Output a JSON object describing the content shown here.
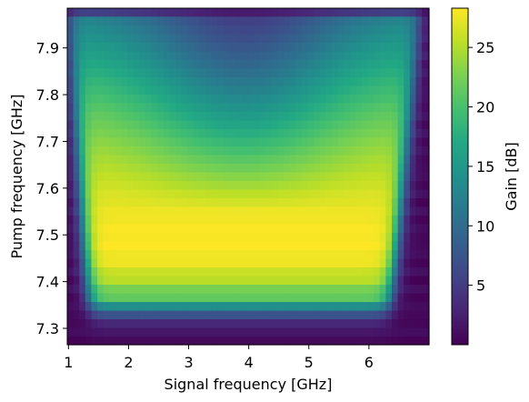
{
  "chart_data": {
    "type": "heatmap",
    "title": "",
    "xlabel": "Signal frequency [GHz]",
    "ylabel": "Pump frequency [GHz]",
    "xlim": [
      0.98,
      7.0
    ],
    "ylim": [
      7.265,
      7.985
    ],
    "x_ticks": [
      {
        "value": 1,
        "label": "1"
      },
      {
        "value": 2,
        "label": "2"
      },
      {
        "value": 3,
        "label": "3"
      },
      {
        "value": 4,
        "label": "4"
      },
      {
        "value": 5,
        "label": "5"
      },
      {
        "value": 6,
        "label": "6"
      }
    ],
    "y_ticks": [
      {
        "value": 7.3,
        "label": "7.3"
      },
      {
        "value": 7.4,
        "label": "7.4"
      },
      {
        "value": 7.5,
        "label": "7.5"
      },
      {
        "value": 7.6,
        "label": "7.6"
      },
      {
        "value": 7.7,
        "label": "7.7"
      },
      {
        "value": 7.8,
        "label": "7.8"
      },
      {
        "value": 7.9,
        "label": "7.9"
      }
    ],
    "grid_x_step": 0.1,
    "grid_y_step": 0.0185,
    "colormap": "viridis",
    "colorbar": {
      "label": "Gain [dB]",
      "range": [
        0,
        28.3
      ],
      "ticks": [
        {
          "value": 5,
          "label": "5"
        },
        {
          "value": 10,
          "label": "10"
        },
        {
          "value": 15,
          "label": "15"
        },
        {
          "value": 20,
          "label": "20"
        },
        {
          "value": 25,
          "label": "25"
        }
      ]
    },
    "gain_model": {
      "peak_gain_db": 28.3,
      "peak_pump_ghz": 7.48,
      "peak_signal_ghz": 3.75,
      "band_lower_ghz": [
        1.35,
        1.0
      ],
      "band_upper_ghz": [
        6.35,
        6.85
      ],
      "pump_cutoff_ghz": 7.35,
      "top_dip_pump_ghz": 7.985
    }
  }
}
